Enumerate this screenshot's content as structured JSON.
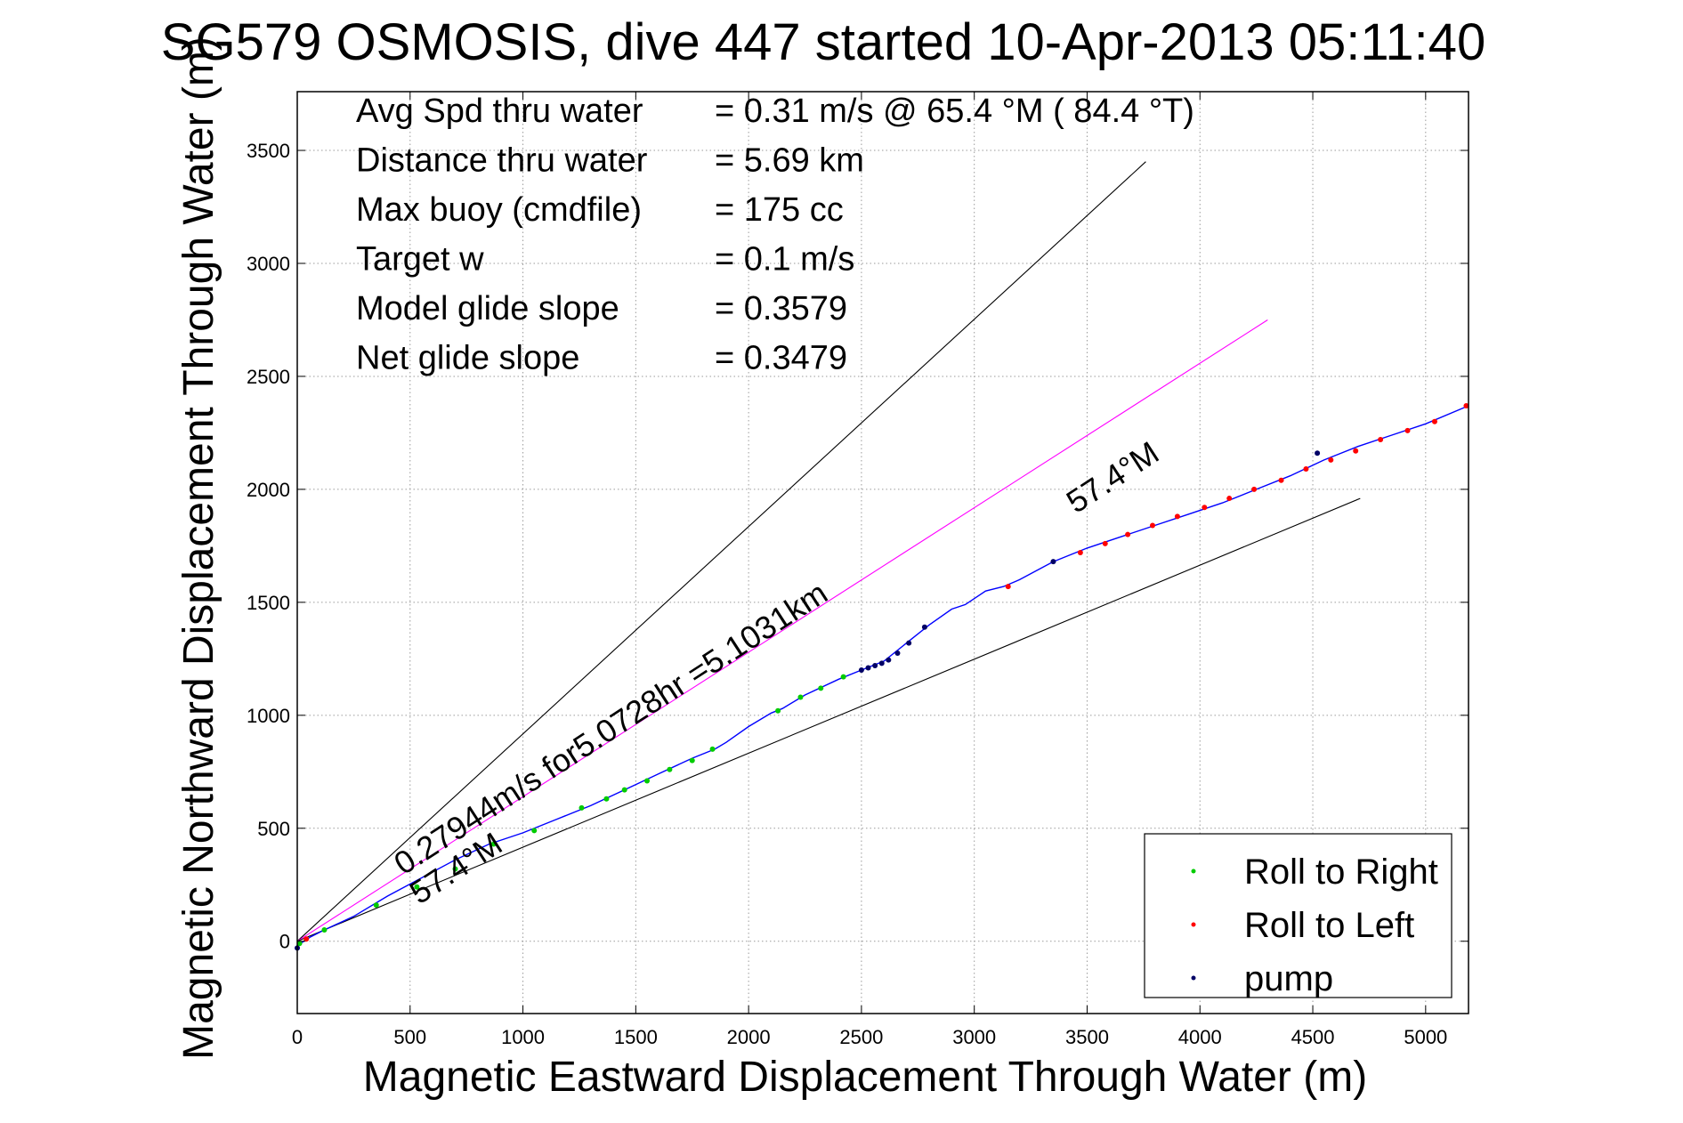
{
  "chart_data": {
    "type": "line",
    "title": "SG579 OSMOSIS, dive 447 started 10-Apr-2013 05:11:40",
    "xlabel": "Magnetic Eastward Displacement Through Water (m)",
    "ylabel": "Magnetic Northward Displacement Through Water (m)",
    "xlim": [
      0,
      5190
    ],
    "ylim": [
      -320,
      3760
    ],
    "xticks": [
      0,
      500,
      1000,
      1500,
      2000,
      2500,
      3000,
      3500,
      4000,
      4500,
      5000
    ],
    "yticks": [
      0,
      500,
      1000,
      1500,
      2000,
      2500,
      3000,
      3500
    ],
    "grid": true,
    "stats": [
      {
        "label": "Avg Spd thru water",
        "value": "=  0.31 m/s @  65.4 °M ( 84.4 °T)"
      },
      {
        "label": "Distance thru water",
        "value": "=  5.69 km"
      },
      {
        "label": "Max buoy (cmdfile)",
        "value": "= 175 cc"
      },
      {
        "label": "Target w",
        "value": "= 0.1 m/s"
      },
      {
        "label": "Model glide slope",
        "value": "= 0.3579"
      },
      {
        "label": "Net glide slope",
        "value": "= 0.3479"
      }
    ],
    "annotations": [
      {
        "text": "0.27944m/s for5.0728hr =5.1031km",
        "x": 470,
        "y": 290
      },
      {
        "text": "57.4°M",
        "x": 540,
        "y": 160
      },
      {
        "text": "57.4°M",
        "x": 3450,
        "y": 1890
      }
    ],
    "series": [
      {
        "name": "",
        "kind": "reference-line",
        "color": "#000000",
        "x": [
          0,
          3760
        ],
        "y": [
          0,
          3450
        ]
      },
      {
        "name": "",
        "kind": "reference-line",
        "color": "#ff00ff",
        "x": [
          0,
          4300
        ],
        "y": [
          0,
          2750
        ]
      },
      {
        "name": "",
        "kind": "reference-line",
        "color": "#000000",
        "x": [
          0,
          4710
        ],
        "y": [
          0,
          1960
        ]
      },
      {
        "name": "",
        "kind": "track",
        "color": "#0000ff",
        "x": [
          0,
          30,
          60,
          120,
          250,
          400,
          550,
          700,
          850,
          1000,
          1150,
          1300,
          1450,
          1600,
          1750,
          1850,
          1900,
          2000,
          2100,
          2150,
          2250,
          2400,
          2500,
          2600,
          2700,
          2800,
          2900,
          2960,
          3050,
          3130,
          3200,
          3350,
          3500,
          3650,
          3800,
          3950,
          4100,
          4250,
          4400,
          4550,
          4700,
          4850,
          5000,
          5190
        ],
        "y": [
          -20,
          0,
          20,
          50,
          110,
          200,
          280,
          360,
          430,
          480,
          540,
          600,
          670,
          740,
          810,
          850,
          880,
          950,
          1010,
          1030,
          1090,
          1160,
          1200,
          1240,
          1320,
          1400,
          1470,
          1490,
          1550,
          1570,
          1600,
          1680,
          1740,
          1790,
          1840,
          1890,
          1940,
          2000,
          2060,
          2130,
          2190,
          2240,
          2290,
          2370
        ]
      },
      {
        "name": "Roll to Right",
        "kind": "markers",
        "color": "#00cc00",
        "x": [
          10,
          120,
          350,
          530,
          700,
          870,
          1050,
          1260,
          1370,
          1450,
          1550,
          1650,
          1750,
          1840,
          2130,
          2230,
          2320,
          2420
        ],
        "y": [
          -10,
          50,
          160,
          240,
          320,
          430,
          490,
          590,
          630,
          670,
          710,
          760,
          800,
          850,
          1020,
          1080,
          1120,
          1170
        ]
      },
      {
        "name": "Roll to Left",
        "kind": "markers",
        "color": "#ff0000",
        "x": [
          40,
          3150,
          3470,
          3580,
          3680,
          3790,
          3900,
          4020,
          4130,
          4240,
          4360,
          4470,
          4580,
          4690,
          4800,
          4920,
          5040,
          5180
        ],
        "y": [
          10,
          1570,
          1720,
          1760,
          1800,
          1840,
          1880,
          1920,
          1960,
          2000,
          2040,
          2090,
          2130,
          2170,
          2220,
          2260,
          2300,
          2370
        ]
      },
      {
        "name": "pump",
        "kind": "markers",
        "color": "#000066",
        "x": [
          0,
          2500,
          2530,
          2560,
          2590,
          2620,
          2660,
          2710,
          2780,
          3350,
          4520
        ],
        "y": [
          -30,
          1200,
          1210,
          1220,
          1230,
          1245,
          1275,
          1320,
          1390,
          1680,
          2160
        ]
      }
    ]
  }
}
